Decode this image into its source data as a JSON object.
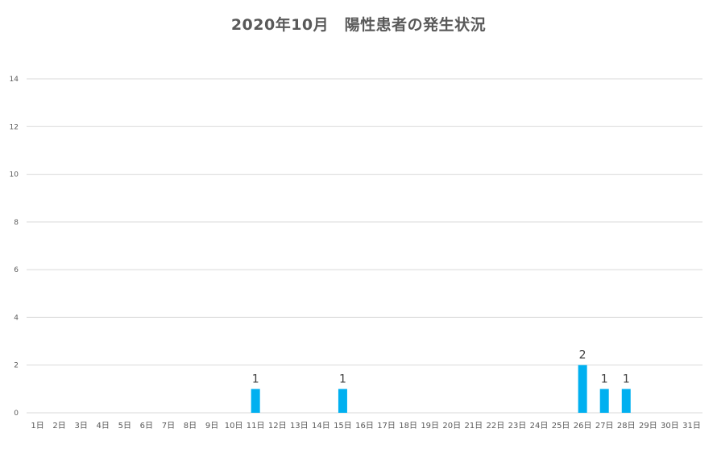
{
  "chart_data": {
    "type": "bar",
    "title": "2020年10月　陽性患者の発生状況",
    "categories": [
      "1日",
      "2日",
      "3日",
      "4日",
      "5日",
      "6日",
      "7日",
      "8日",
      "9日",
      "10日",
      "11日",
      "12日",
      "13日",
      "14日",
      "15日",
      "16日",
      "17日",
      "18日",
      "19日",
      "20日",
      "21日",
      "22日",
      "23日",
      "24日",
      "25日",
      "26日",
      "27日",
      "28日",
      "29日",
      "30日",
      "31日"
    ],
    "values": [
      0,
      0,
      0,
      0,
      0,
      0,
      0,
      0,
      0,
      0,
      1,
      0,
      0,
      0,
      1,
      0,
      0,
      0,
      0,
      0,
      0,
      0,
      0,
      0,
      0,
      2,
      1,
      1,
      0,
      0,
      0
    ],
    "ylim": [
      0,
      14
    ],
    "yticks": [
      0,
      2,
      4,
      6,
      8,
      10,
      12,
      14
    ],
    "grid": true,
    "legend": "none",
    "data_labels": "nonzero",
    "bar_color": "#00B0F0",
    "grid_color": "#D9D9D9",
    "axis_color": "#D9D9D9",
    "text_color": "#595959"
  }
}
